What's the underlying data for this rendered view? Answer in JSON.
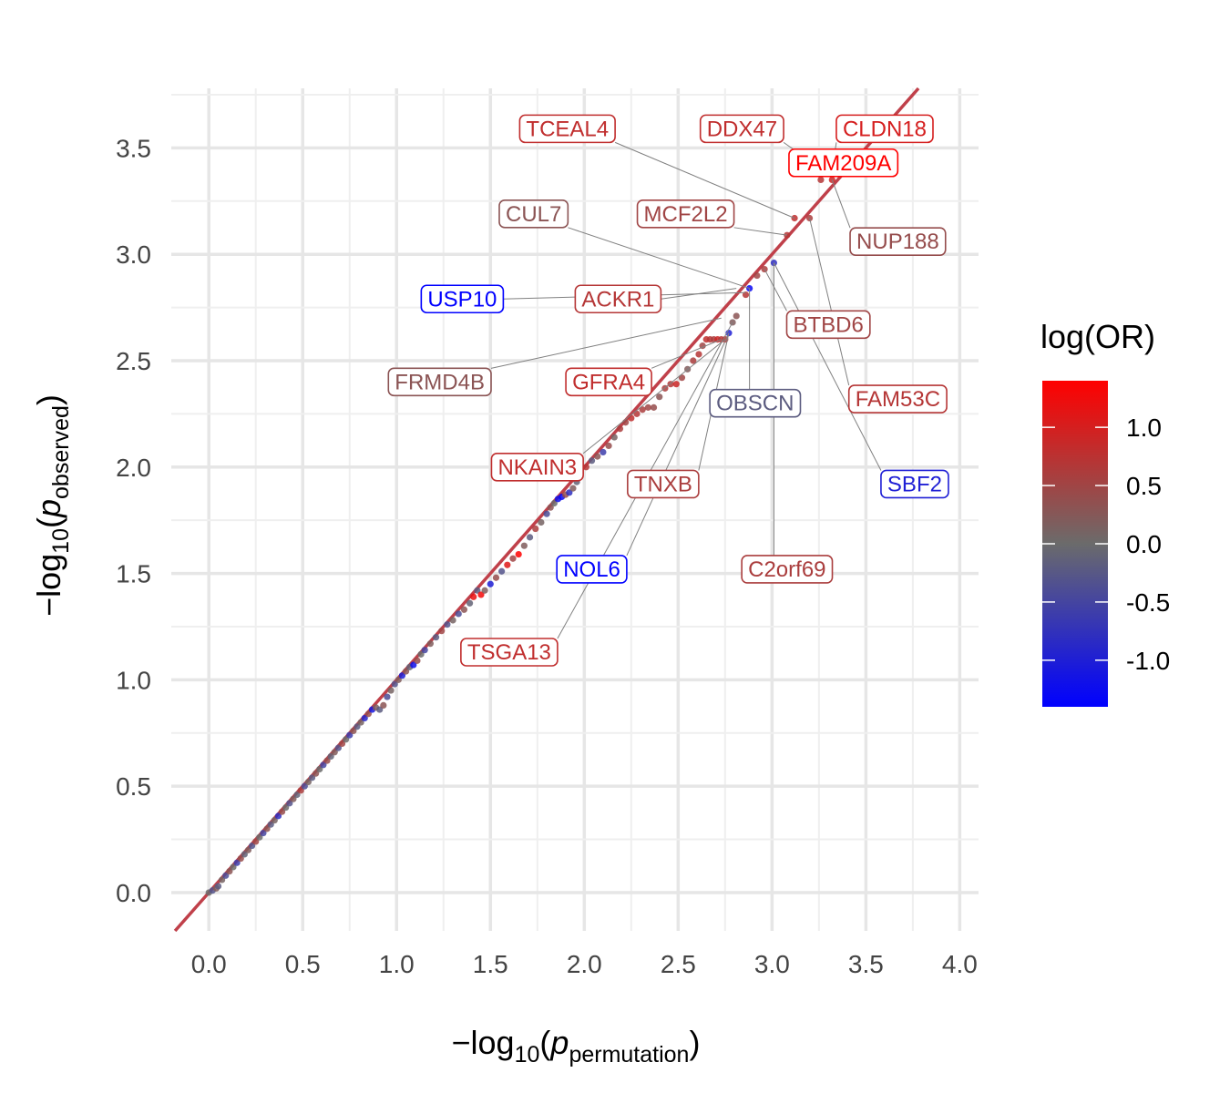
{
  "chart_data": {
    "type": "scatter",
    "xlabel": {
      "prefix": "−log",
      "sub": "10",
      "open": "(",
      "var": "p",
      "var_sub": "permutation",
      "close": ")"
    },
    "ylabel": {
      "prefix": "−log",
      "sub": "10",
      "open": "(",
      "var": "p",
      "var_sub": "observed",
      "close": ")"
    },
    "xlim": [
      -0.2,
      4.1
    ],
    "ylim": [
      -0.18,
      3.78
    ],
    "x_ticks": [
      0,
      0.5,
      1,
      1.5,
      2,
      2.5,
      3,
      3.5,
      4
    ],
    "x_tick_labels": [
      "0.0",
      "0.5",
      "1.0",
      "1.5",
      "2.0",
      "2.5",
      "3.0",
      "3.5",
      "4.0"
    ],
    "y_ticks": [
      0,
      0.5,
      1,
      1.5,
      2,
      2.5,
      3,
      3.5
    ],
    "y_tick_labels": [
      "0.0",
      "0.5",
      "1.0",
      "1.5",
      "2.0",
      "2.5",
      "3.0",
      "3.5"
    ],
    "grid": true,
    "reference_line": {
      "slope": 1,
      "intercept": 0,
      "color": "#c0404a"
    },
    "legend": {
      "title": "log(OR)",
      "placement": "right",
      "range": [
        -1.4,
        1.4
      ],
      "ticks": [
        1.0,
        0.5,
        0.0,
        -0.5,
        -1.0
      ],
      "tick_labels": [
        "1.0",
        "0.5",
        "0.0",
        "-0.5",
        "-1.0"
      ],
      "colors": {
        "low": "#0000ff",
        "mid": "#6b6b6b",
        "high": "#ff0000"
      }
    },
    "points": [
      {
        "x": 0.0,
        "y": 0.0,
        "c": 0.0
      },
      {
        "x": 0.02,
        "y": 0.01,
        "c": -0.3
      },
      {
        "x": 0.04,
        "y": 0.02,
        "c": 0.2
      },
      {
        "x": 0.05,
        "y": 0.03,
        "c": -0.2
      },
      {
        "x": 0.07,
        "y": 0.06,
        "c": 0.1
      },
      {
        "x": 0.09,
        "y": 0.08,
        "c": -0.4
      },
      {
        "x": 0.11,
        "y": 0.1,
        "c": 0.3
      },
      {
        "x": 0.13,
        "y": 0.12,
        "c": 0.0
      },
      {
        "x": 0.15,
        "y": 0.14,
        "c": -0.6
      },
      {
        "x": 0.17,
        "y": 0.16,
        "c": 0.4
      },
      {
        "x": 0.19,
        "y": 0.18,
        "c": -0.1
      },
      {
        "x": 0.21,
        "y": 0.2,
        "c": 0.2
      },
      {
        "x": 0.23,
        "y": 0.22,
        "c": -0.3
      },
      {
        "x": 0.25,
        "y": 0.24,
        "c": 0.5
      },
      {
        "x": 0.27,
        "y": 0.26,
        "c": 0.0
      },
      {
        "x": 0.29,
        "y": 0.28,
        "c": -0.5
      },
      {
        "x": 0.31,
        "y": 0.3,
        "c": 0.3
      },
      {
        "x": 0.33,
        "y": 0.32,
        "c": -0.2
      },
      {
        "x": 0.35,
        "y": 0.34,
        "c": 0.1
      },
      {
        "x": 0.37,
        "y": 0.36,
        "c": -0.8
      },
      {
        "x": 0.39,
        "y": 0.38,
        "c": 0.4
      },
      {
        "x": 0.41,
        "y": 0.4,
        "c": 0.0
      },
      {
        "x": 0.43,
        "y": 0.42,
        "c": -0.3
      },
      {
        "x": 0.45,
        "y": 0.44,
        "c": 0.2
      },
      {
        "x": 0.47,
        "y": 0.46,
        "c": -0.1
      },
      {
        "x": 0.49,
        "y": 0.48,
        "c": 0.6
      },
      {
        "x": 0.51,
        "y": 0.5,
        "c": -0.4
      },
      {
        "x": 0.53,
        "y": 0.52,
        "c": 0.1
      },
      {
        "x": 0.55,
        "y": 0.54,
        "c": -0.2
      },
      {
        "x": 0.57,
        "y": 0.56,
        "c": 0.3
      },
      {
        "x": 0.59,
        "y": 0.58,
        "c": 0.0
      },
      {
        "x": 0.61,
        "y": 0.6,
        "c": -0.5
      },
      {
        "x": 0.63,
        "y": 0.62,
        "c": 0.4
      },
      {
        "x": 0.65,
        "y": 0.64,
        "c": -0.1
      },
      {
        "x": 0.67,
        "y": 0.66,
        "c": 0.2
      },
      {
        "x": 0.69,
        "y": 0.68,
        "c": -0.3
      },
      {
        "x": 0.71,
        "y": 0.7,
        "c": 0.5
      },
      {
        "x": 0.73,
        "y": 0.72,
        "c": 0.0
      },
      {
        "x": 0.75,
        "y": 0.74,
        "c": -0.6
      },
      {
        "x": 0.77,
        "y": 0.76,
        "c": 0.3
      },
      {
        "x": 0.79,
        "y": 0.78,
        "c": -0.2
      },
      {
        "x": 0.81,
        "y": 0.8,
        "c": 0.1
      },
      {
        "x": 0.83,
        "y": 0.82,
        "c": -0.9
      },
      {
        "x": 0.85,
        "y": 0.84,
        "c": 0.4
      },
      {
        "x": 0.87,
        "y": 0.86,
        "c": -1.1
      },
      {
        "x": 0.89,
        "y": 0.87,
        "c": 0.2
      },
      {
        "x": 0.91,
        "y": 0.86,
        "c": -0.2
      },
      {
        "x": 0.93,
        "y": 0.88,
        "c": 0.3
      },
      {
        "x": 0.95,
        "y": 0.92,
        "c": -0.4
      },
      {
        "x": 0.97,
        "y": 0.95,
        "c": 0.1
      },
      {
        "x": 0.99,
        "y": 0.98,
        "c": -0.3
      },
      {
        "x": 1.01,
        "y": 1.0,
        "c": 0.2
      },
      {
        "x": 1.03,
        "y": 1.02,
        "c": -1.0
      },
      {
        "x": 1.05,
        "y": 1.04,
        "c": 0.3
      },
      {
        "x": 1.07,
        "y": 1.06,
        "c": -0.1
      },
      {
        "x": 1.09,
        "y": 1.07,
        "c": -1.2
      },
      {
        "x": 1.11,
        "y": 1.09,
        "c": 0.4
      },
      {
        "x": 1.13,
        "y": 1.12,
        "c": 0.0
      },
      {
        "x": 1.15,
        "y": 1.14,
        "c": -0.5
      },
      {
        "x": 1.18,
        "y": 1.17,
        "c": 0.2
      },
      {
        "x": 1.21,
        "y": 1.2,
        "c": -0.2
      },
      {
        "x": 1.24,
        "y": 1.23,
        "c": 0.5
      },
      {
        "x": 1.27,
        "y": 1.26,
        "c": -0.3
      },
      {
        "x": 1.3,
        "y": 1.28,
        "c": 0.1
      },
      {
        "x": 1.33,
        "y": 1.31,
        "c": -0.4
      },
      {
        "x": 1.36,
        "y": 1.33,
        "c": 0.3
      },
      {
        "x": 1.39,
        "y": 1.36,
        "c": -0.1
      },
      {
        "x": 1.41,
        "y": 1.39,
        "c": 1.2
      },
      {
        "x": 1.43,
        "y": 1.42,
        "c": -0.2
      },
      {
        "x": 1.45,
        "y": 1.4,
        "c": 1.3
      },
      {
        "x": 1.47,
        "y": 1.42,
        "c": 0.2
      },
      {
        "x": 1.5,
        "y": 1.45,
        "c": -1.0
      },
      {
        "x": 1.53,
        "y": 1.48,
        "c": 0.4
      },
      {
        "x": 1.56,
        "y": 1.51,
        "c": -0.3
      },
      {
        "x": 1.59,
        "y": 1.54,
        "c": 1.1
      },
      {
        "x": 1.62,
        "y": 1.57,
        "c": 0.5
      },
      {
        "x": 1.65,
        "y": 1.59,
        "c": 1.4
      },
      {
        "x": 1.68,
        "y": 1.63,
        "c": 0.2
      },
      {
        "x": 1.71,
        "y": 1.67,
        "c": -0.2
      },
      {
        "x": 1.74,
        "y": 1.71,
        "c": 0.6
      },
      {
        "x": 1.77,
        "y": 1.74,
        "c": 0.1
      },
      {
        "x": 1.8,
        "y": 1.78,
        "c": -0.4
      },
      {
        "x": 1.82,
        "y": 1.81,
        "c": 0.3
      },
      {
        "x": 1.84,
        "y": 1.83,
        "c": 0.0
      },
      {
        "x": 1.86,
        "y": 1.85,
        "c": -1.2
      },
      {
        "x": 1.88,
        "y": 1.86,
        "c": -1.3
      },
      {
        "x": 1.9,
        "y": 1.87,
        "c": 0.4
      },
      {
        "x": 1.92,
        "y": 1.88,
        "c": -0.8
      },
      {
        "x": 1.94,
        "y": 1.9,
        "c": 0.2
      },
      {
        "x": 1.96,
        "y": 1.93,
        "c": -0.1
      },
      {
        "x": 1.98,
        "y": 1.97,
        "c": 0.5
      },
      {
        "x": 2.01,
        "y": 2.0,
        "c": 0.7
      },
      {
        "x": 2.04,
        "y": 2.03,
        "c": -0.2
      },
      {
        "x": 2.07,
        "y": 2.05,
        "c": 0.3
      },
      {
        "x": 2.1,
        "y": 2.07,
        "c": -0.6
      },
      {
        "x": 2.13,
        "y": 2.1,
        "c": 0.4
      },
      {
        "x": 2.16,
        "y": 2.14,
        "c": 0.1
      },
      {
        "x": 2.19,
        "y": 2.18,
        "c": 0.6
      },
      {
        "x": 2.22,
        "y": 2.21,
        "c": 0.5
      },
      {
        "x": 2.25,
        "y": 2.23,
        "c": 0.8
      },
      {
        "x": 2.28,
        "y": 2.25,
        "c": 0.7
      },
      {
        "x": 2.31,
        "y": 2.27,
        "c": 0.6
      },
      {
        "x": 2.34,
        "y": 2.28,
        "c": 0.5
      },
      {
        "x": 2.37,
        "y": 2.28,
        "c": 0.4
      },
      {
        "x": 2.4,
        "y": 2.33,
        "c": 0.3
      },
      {
        "x": 2.43,
        "y": 2.37,
        "c": 0.6
      },
      {
        "x": 2.46,
        "y": 2.39,
        "c": 0.7
      },
      {
        "x": 2.49,
        "y": 2.39,
        "c": 0.9
      },
      {
        "x": 2.52,
        "y": 2.42,
        "c": 0.5
      },
      {
        "x": 2.55,
        "y": 2.46,
        "c": 0.2
      },
      {
        "x": 2.58,
        "y": 2.5,
        "c": 0.6
      },
      {
        "x": 2.61,
        "y": 2.53,
        "c": 0.7
      },
      {
        "x": 2.63,
        "y": 2.57,
        "c": 0.5
      },
      {
        "x": 2.65,
        "y": 2.6,
        "c": 0.8
      },
      {
        "x": 2.67,
        "y": 2.6,
        "c": 0.7
      },
      {
        "x": 2.69,
        "y": 2.6,
        "c": 0.6
      },
      {
        "x": 2.71,
        "y": 2.6,
        "c": 0.9
      },
      {
        "x": 2.73,
        "y": 2.6,
        "c": 0.7
      },
      {
        "x": 2.75,
        "y": 2.6,
        "c": 0.8
      },
      {
        "x": 2.77,
        "y": 2.63,
        "c": -1.0
      },
      {
        "x": 2.79,
        "y": 2.68,
        "c": 0.2
      },
      {
        "x": 2.81,
        "y": 2.71,
        "c": 0.3
      },
      {
        "x": 2.86,
        "y": 2.81,
        "c": 0.7
      },
      {
        "x": 2.88,
        "y": 2.84,
        "c": -1.3
      },
      {
        "x": 2.92,
        "y": 2.9,
        "c": 0.5
      },
      {
        "x": 2.96,
        "y": 2.93,
        "c": 0.6
      },
      {
        "x": 3.01,
        "y": 2.96,
        "c": -0.8
      },
      {
        "x": 3.08,
        "y": 3.09,
        "c": 0.7
      },
      {
        "x": 3.12,
        "y": 3.17,
        "c": 0.8
      },
      {
        "x": 3.2,
        "y": 3.17,
        "c": 0.6
      },
      {
        "x": 3.26,
        "y": 3.35,
        "c": 0.7
      },
      {
        "x": 3.32,
        "y": 3.35,
        "c": 0.9
      }
    ],
    "labels": [
      {
        "text": "TCEAL4",
        "c": 0.8,
        "lx": 1.91,
        "ly": 3.59,
        "px": 3.12,
        "py": 3.17
      },
      {
        "text": "DDX47",
        "c": 0.8,
        "lx": 2.84,
        "ly": 3.59,
        "px": 3.2,
        "py": 3.44
      },
      {
        "text": "CLDN18",
        "c": 1.0,
        "lx": 3.6,
        "ly": 3.59,
        "px": 3.32,
        "py": 3.4
      },
      {
        "text": "FAM209A",
        "c": 1.4,
        "lx": 3.38,
        "ly": 3.43,
        "px": 3.3,
        "py": 3.38
      },
      {
        "text": "CUL7",
        "c": 0.3,
        "lx": 1.73,
        "ly": 3.19,
        "px": 2.88,
        "py": 2.84
      },
      {
        "text": "MCF2L2",
        "c": 0.5,
        "lx": 2.54,
        "ly": 3.19,
        "px": 3.08,
        "py": 3.09
      },
      {
        "text": "NUP188",
        "c": 0.4,
        "lx": 3.67,
        "ly": 3.06,
        "px": 3.32,
        "py": 3.35
      },
      {
        "text": "USP10",
        "c": -1.4,
        "lx": 1.35,
        "ly": 2.79,
        "px": 2.86,
        "py": 2.82
      },
      {
        "text": "ACKR1",
        "c": 0.7,
        "lx": 2.18,
        "ly": 2.79,
        "px": 2.81,
        "py": 2.84
      },
      {
        "text": "BTBD6",
        "c": 0.5,
        "lx": 3.3,
        "ly": 2.67,
        "px": 2.96,
        "py": 2.93
      },
      {
        "text": "FRMD4B",
        "c": 0.3,
        "lx": 1.23,
        "ly": 2.4,
        "px": 2.73,
        "py": 2.7
      },
      {
        "text": "GFRA4",
        "c": 0.8,
        "lx": 2.13,
        "ly": 2.4,
        "px": 2.73,
        "py": 2.6
      },
      {
        "text": "OBSCN",
        "c": -0.2,
        "lx": 2.91,
        "ly": 2.3,
        "px": 2.88,
        "py": 2.84
      },
      {
        "text": "FAM53C",
        "c": 0.7,
        "lx": 3.67,
        "ly": 2.32,
        "px": 3.2,
        "py": 3.17
      },
      {
        "text": "NKAIN3",
        "c": 0.8,
        "lx": 1.75,
        "ly": 2.0,
        "px": 2.75,
        "py": 2.6
      },
      {
        "text": "TNXB",
        "c": 0.6,
        "lx": 2.42,
        "ly": 1.92,
        "px": 2.77,
        "py": 2.63
      },
      {
        "text": "SBF2",
        "c": -1.0,
        "lx": 3.76,
        "ly": 1.92,
        "px": 3.01,
        "py": 2.96
      },
      {
        "text": "NOL6",
        "c": -1.4,
        "lx": 2.04,
        "ly": 1.52,
        "px": 2.77,
        "py": 2.63
      },
      {
        "text": "C2orf69",
        "c": 0.6,
        "lx": 3.08,
        "ly": 1.52,
        "px": 3.01,
        "py": 2.96
      },
      {
        "text": "TSGA13",
        "c": 0.8,
        "lx": 1.6,
        "ly": 1.13,
        "px": 2.79,
        "py": 2.68
      }
    ]
  }
}
